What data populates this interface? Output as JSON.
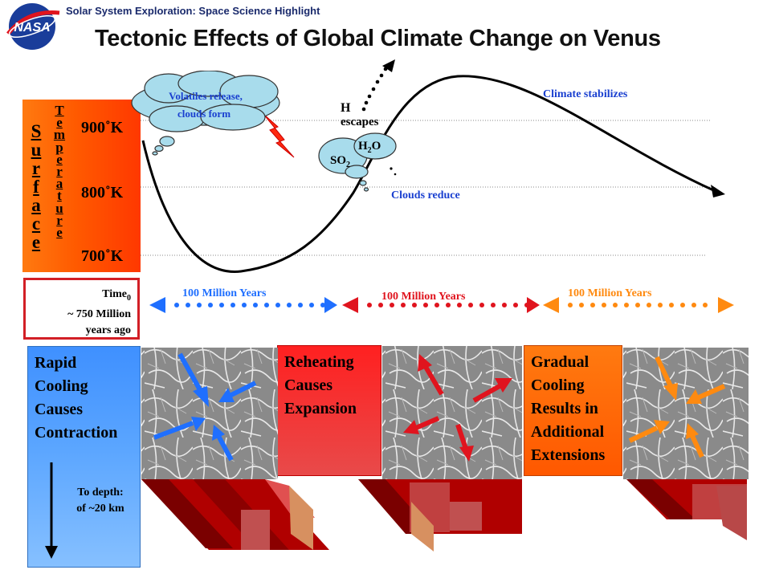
{
  "header": {
    "tag": "Solar System Exploration: Space Science Highlight",
    "title": "Tectonic Effects of Global Climate Change on Venus",
    "logo_text": "NASA"
  },
  "temperature_panel": {
    "surface_letters": [
      "S",
      "u",
      "r",
      "f",
      "a",
      "c",
      "e"
    ],
    "temperature_letters": [
      "T",
      "e",
      "m",
      "p",
      "e",
      "r",
      "a",
      "t",
      "u",
      "r",
      "e"
    ],
    "ticks": [
      "900˚K",
      "800˚K",
      "700˚K"
    ]
  },
  "time_box": {
    "line1": "Time",
    "line1_sub": "0",
    "line2": "~ 750 Million",
    "line3": "years ago"
  },
  "graph": {
    "cloud_text_line1": "Volatiles release,",
    "cloud_text_line2": "clouds form",
    "h_label": "H",
    "escapes_label": "escapes",
    "h2o_label": "H",
    "h2o_sub": "2",
    "h2o_suffix": "O",
    "so2_label": "SO",
    "so2_sub": "2",
    "clouds_reduce": "Clouds reduce",
    "climate_stabilizes": "Climate stabilizes"
  },
  "timeline": [
    {
      "label": "100 Million Years",
      "color": "#1f6fff"
    },
    {
      "label": "100 Million Years",
      "color": "#e0141e"
    },
    {
      "label": "100 Million Years",
      "color": "#ff8a10"
    }
  ],
  "phases": {
    "phase1": [
      "Rapid",
      "Cooling",
      "Causes",
      "Contraction"
    ],
    "phase2": [
      "Reheating",
      "Causes",
      "Expansion"
    ],
    "phase3": [
      "Gradual",
      "Cooling",
      "Results in",
      "Additional",
      "Extensions"
    ],
    "depth_line1": "To depth:",
    "depth_line2": "of ~20 km"
  },
  "colors": {
    "blue_arrow": "#1f6fff",
    "red_arrow": "#e0141e",
    "orange_arrow": "#ff8a10",
    "temp_panel": "#ff5a00"
  }
}
